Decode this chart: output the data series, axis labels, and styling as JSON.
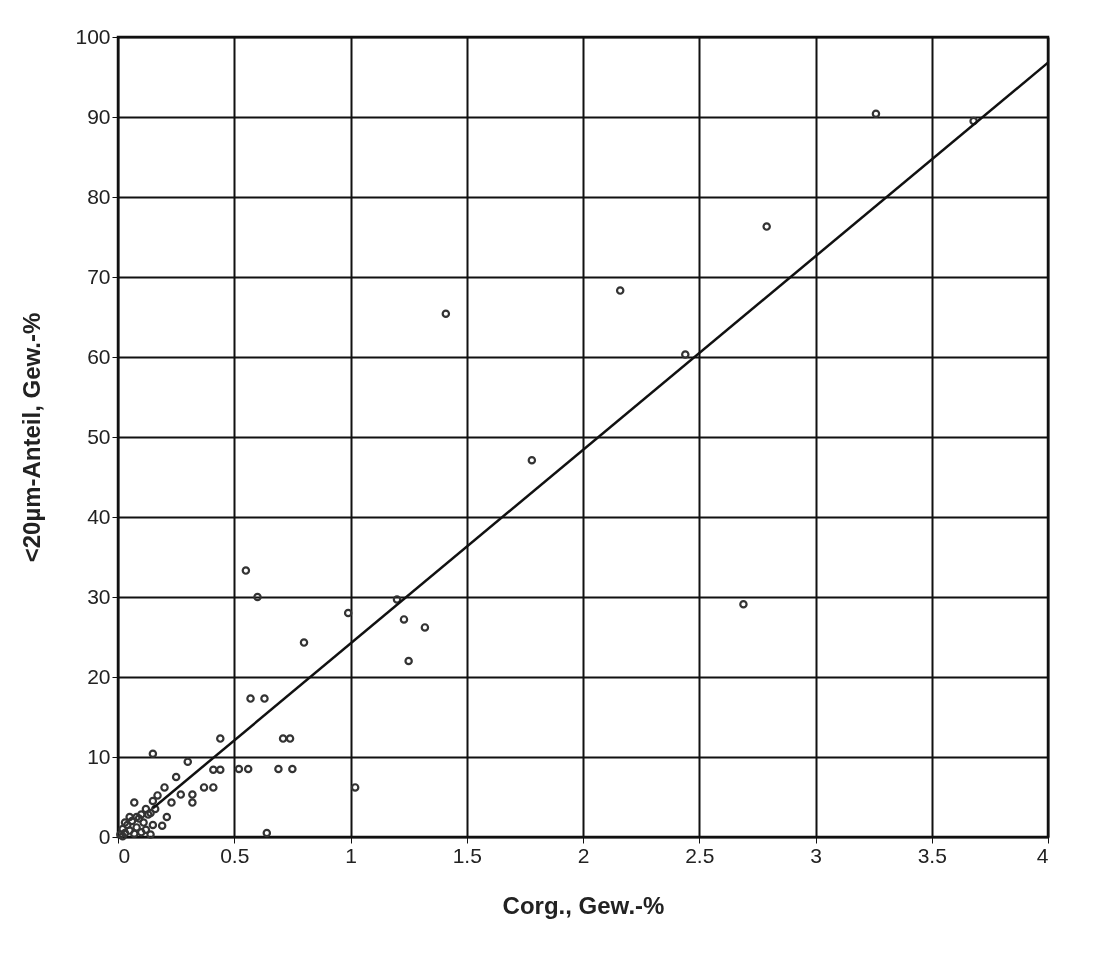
{
  "chart_data": {
    "type": "scatter",
    "xlabel": "Corg., Gew.-%",
    "ylabel": "<20µm-Anteil, Gew.-%",
    "xlim": [
      0,
      4
    ],
    "ylim": [
      0,
      100
    ],
    "xticks": [
      0,
      0.5,
      1,
      1.5,
      2,
      2.5,
      3,
      3.5,
      4
    ],
    "yticks": [
      0,
      10,
      20,
      30,
      40,
      50,
      60,
      70,
      80,
      90,
      100
    ],
    "grid": true,
    "marker": "circle",
    "series": [
      {
        "color": "#333333",
        "x": [
          1.41,
          2.16,
          3.26,
          2.79,
          1.78,
          2.44,
          2.69,
          3.68,
          1.23,
          1.32,
          1.25,
          1.2,
          0.55,
          0.6,
          0.99,
          0.8,
          0.57,
          0.63,
          0.71,
          0.74,
          0.44,
          0.15,
          0.3,
          0.41,
          0.44,
          0.52,
          0.56,
          0.69,
          0.75,
          0.25,
          0.37,
          0.41,
          1.02,
          0.2,
          0.27,
          0.32,
          0.32,
          0.17,
          0.23,
          0.07,
          0.21,
          0.19,
          0.64,
          0.01,
          0.02,
          0.03,
          0.04,
          0.05,
          0.06,
          0.07,
          0.08,
          0.09,
          0.1,
          0.11,
          0.12,
          0.13,
          0.14,
          0.15,
          0.16,
          0.15,
          0.14,
          0.12,
          0.1,
          0.08,
          0.05,
          0.02,
          0.03
        ],
        "values": [
          65.4,
          68.3,
          90.4,
          76.3,
          47.1,
          60.3,
          29.1,
          89.5,
          27.2,
          26.2,
          22,
          29.7,
          33.3,
          30,
          28,
          24.3,
          17.3,
          17.3,
          12.3,
          12.3,
          12.3,
          10.4,
          9.4,
          8.4,
          8.4,
          8.5,
          8.5,
          8.5,
          8.5,
          7.5,
          6.2,
          6.2,
          6.2,
          6.2,
          5.3,
          5.3,
          4.3,
          5.2,
          4.3,
          4.3,
          2.5,
          1.4,
          0.5,
          0.3,
          1,
          0.5,
          1.5,
          0.8,
          2,
          0.4,
          1.2,
          2.3,
          0.6,
          1.8,
          0.9,
          2.8,
          0.3,
          1.5,
          3.5,
          4.5,
          3,
          3.5,
          2.8,
          2.5,
          2.5,
          0.1,
          1.8
        ]
      },
      {
        "type": "line",
        "color": "#111111",
        "marker": "none",
        "line_style": "solid",
        "x": [
          0.15,
          4
        ],
        "values": [
          3.6,
          96.8
        ]
      }
    ]
  }
}
